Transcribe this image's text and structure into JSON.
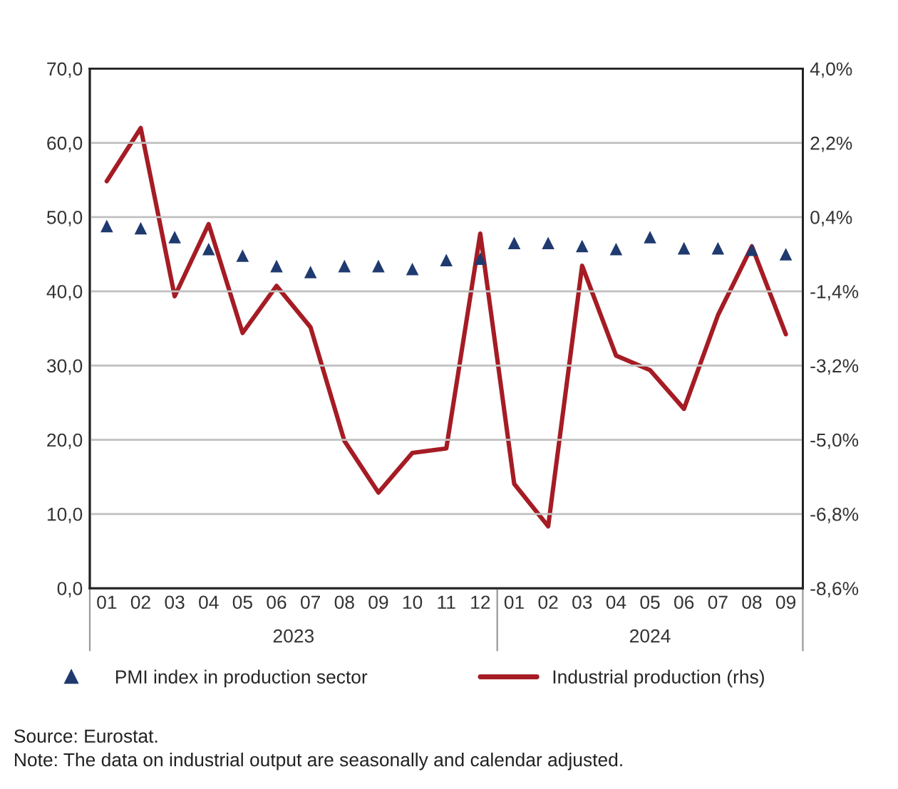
{
  "chart_data": {
    "type": "line",
    "categories": [
      "01",
      "02",
      "03",
      "04",
      "05",
      "06",
      "07",
      "08",
      "09",
      "10",
      "11",
      "12",
      "01",
      "02",
      "03",
      "04",
      "05",
      "06",
      "07",
      "08",
      "09"
    ],
    "series": [
      {
        "name": "PMI index in production sector",
        "type": "scatter",
        "color": "#1f3a6e",
        "marker": "triangle",
        "values": [
          48.8,
          48.5,
          47.3,
          45.7,
          44.8,
          43.4,
          42.6,
          43.4,
          43.4,
          43.0,
          44.2,
          44.4,
          46.5,
          46.5,
          46.1,
          45.7,
          47.3,
          45.8,
          45.8,
          45.6,
          45.0
        ]
      },
      {
        "name": "Industrial production (rhs)",
        "axis": "y2",
        "color": "#a51c24",
        "line_style": "solid",
        "values": [
          1.27,
          2.56,
          -1.52,
          0.23,
          -2.41,
          -1.27,
          -2.27,
          -5.03,
          -6.28,
          -5.32,
          -5.21,
          0.0,
          -6.07,
          -7.1,
          -0.78,
          -2.96,
          -3.31,
          -4.25,
          -1.98,
          -0.31,
          -2.44
        ]
      }
    ],
    "ylim": [
      0,
      70
    ],
    "yticks": [
      {
        "value": 0,
        "label": "0,0"
      },
      {
        "value": 10,
        "label": "10,0"
      },
      {
        "value": 20,
        "label": "20,0"
      },
      {
        "value": 30,
        "label": "30,0"
      },
      {
        "value": 40,
        "label": "40,0"
      },
      {
        "value": 50,
        "label": "50,0"
      },
      {
        "value": 60,
        "label": "60,0"
      },
      {
        "value": 70,
        "label": "70,0"
      }
    ],
    "y2lim": [
      -8.6,
      4.0
    ],
    "y2ticks": [
      {
        "value": -8.6,
        "label": "-8,6%"
      },
      {
        "value": -6.8,
        "label": "-6,8%"
      },
      {
        "value": -5.0,
        "label": "-5,0%"
      },
      {
        "value": -3.2,
        "label": "-3,2%"
      },
      {
        "value": -1.4,
        "label": "-1,4%"
      },
      {
        "value": 0.4,
        "label": "0,4%"
      },
      {
        "value": 2.2,
        "label": "2,2%"
      },
      {
        "value": 4.0,
        "label": "4,0%"
      }
    ],
    "grid": "y",
    "legend": "bottom",
    "annotations": [
      "2023",
      "2024",
      "Source: Eurostat.",
      "Note: The data on industrial output are seasonally and calendar adjusted."
    ]
  }
}
